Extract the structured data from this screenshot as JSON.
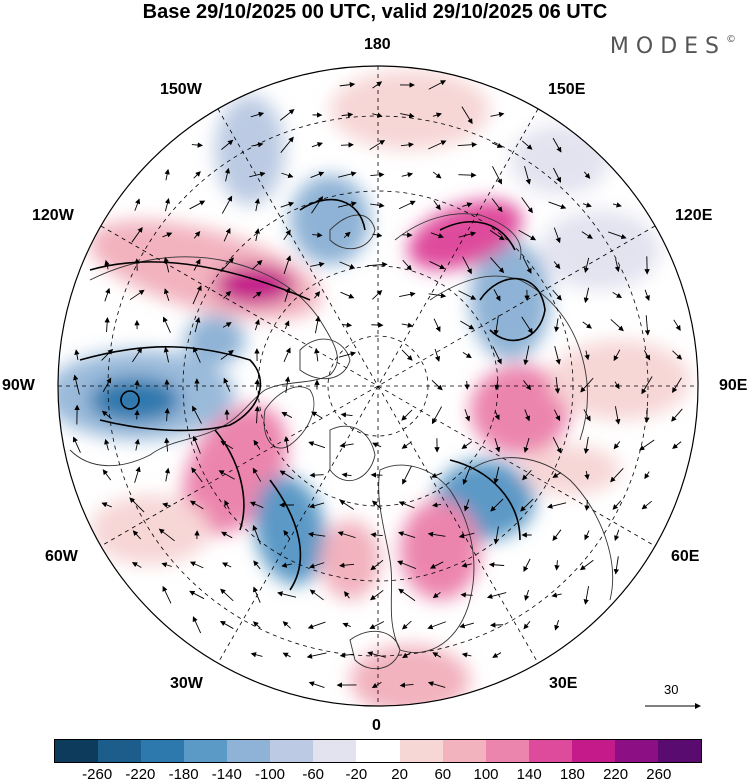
{
  "title": "Base 29/10/2025 00 UTC, valid 29/10/2025 06 UTC",
  "brand": {
    "name": "MODES",
    "mark": "©"
  },
  "longitudes": {
    "top": "180",
    "bottom": "0",
    "left": "90W",
    "right": "90E",
    "upper_left_1": "150W",
    "upper_left_2": "120W",
    "upper_right_1": "150E",
    "upper_right_2": "120E",
    "lower_left_1": "60W",
    "lower_left_2": "30W",
    "lower_right_1": "60E",
    "lower_right_2": "30E"
  },
  "vector_reference": "30",
  "colorbar": {
    "colors": [
      "#0d3b5c",
      "#1c5d8c",
      "#2d78ad",
      "#5b99c6",
      "#8fb3d6",
      "#bccbe3",
      "#e3e3f0",
      "#ffffff",
      "#f7d6d6",
      "#f2b2be",
      "#ec85ad",
      "#df4b9c",
      "#c41a8a",
      "#8c0f84",
      "#5a0b70"
    ],
    "labels": [
      "-260",
      "-220",
      "-180",
      "-140",
      "-100",
      "-60",
      "-20",
      "20",
      "60",
      "100",
      "140",
      "180",
      "220",
      "260"
    ]
  },
  "anomalies": [
    {
      "name": "low-90w",
      "value": -240,
      "color": "#2d78ad"
    },
    {
      "name": "high-120w",
      "value": 200,
      "color": "#c41a8a"
    },
    {
      "name": "high-60w",
      "value": 180,
      "color": "#df4b9c"
    },
    {
      "name": "low-45w",
      "value": -160,
      "color": "#5b99c6"
    },
    {
      "name": "low-60e",
      "value": -200,
      "color": "#2d78ad"
    },
    {
      "name": "high-90e",
      "value": 140,
      "color": "#ec85ad"
    },
    {
      "name": "low-110e",
      "value": -140,
      "color": "#5b99c6"
    },
    {
      "name": "high-140e",
      "value": 150,
      "color": "#df4b9c"
    },
    {
      "name": "high-30e",
      "value": 120,
      "color": "#ec85ad"
    }
  ]
}
